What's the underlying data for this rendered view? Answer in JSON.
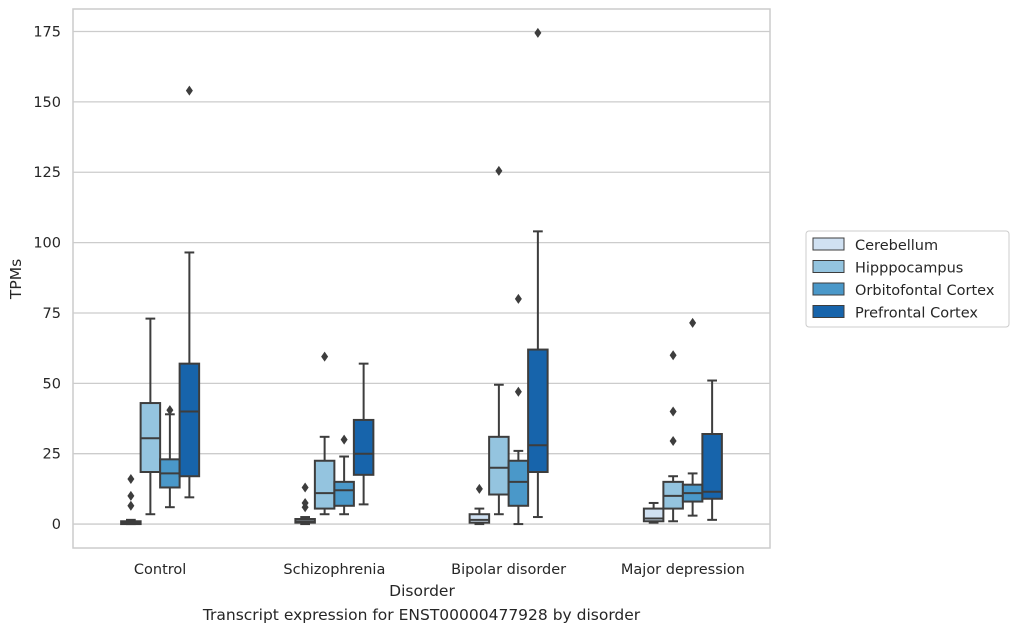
{
  "caption": "Transcript expression for ENST00000477928 by disorder",
  "chart_data": {
    "type": "box",
    "xlabel": "Disorder",
    "ylabel": "TPMs",
    "ylim": [
      -8.5,
      183
    ],
    "yticks": [
      0,
      25,
      50,
      75,
      100,
      125,
      150,
      175
    ],
    "categories": [
      "Control",
      "Schizophrenia",
      "Bipolar disorder",
      "Major depression"
    ],
    "grid": "horizontal",
    "legend_position": "right",
    "series": [
      {
        "name": "Cerebellum",
        "color": "#d0e1f2",
        "boxes": [
          {
            "min": 0,
            "q1": 0,
            "median": 0.5,
            "q3": 1,
            "max": 1.5,
            "outliers": [
              6.5,
              10,
              16
            ]
          },
          {
            "min": 0,
            "q1": 0.5,
            "median": 1,
            "q3": 1.8,
            "max": 2.5,
            "outliers": [
              6,
              7.5,
              13
            ]
          },
          {
            "min": 0,
            "q1": 0.5,
            "median": 1.5,
            "q3": 3.5,
            "max": 5.5,
            "outliers": [
              12.5
            ]
          },
          {
            "min": 0.5,
            "q1": 1,
            "median": 2,
            "q3": 5.5,
            "max": 7.5,
            "outliers": []
          }
        ]
      },
      {
        "name": "Hipppocampus",
        "color": "#94c4df",
        "boxes": [
          {
            "min": 3.5,
            "q1": 18.5,
            "median": 30.5,
            "q3": 43,
            "max": 73,
            "outliers": []
          },
          {
            "min": 3.5,
            "q1": 5.5,
            "median": 11,
            "q3": 22.5,
            "max": 31,
            "outliers": [
              59.5
            ]
          },
          {
            "min": 3.5,
            "q1": 10.5,
            "median": 20,
            "q3": 31,
            "max": 49.5,
            "outliers": [
              125.5
            ]
          },
          {
            "min": 1,
            "q1": 5.5,
            "median": 10,
            "q3": 15,
            "max": 17,
            "outliers": [
              29.5,
              40,
              60
            ]
          }
        ]
      },
      {
        "name": "Orbitofontal Cortex",
        "color": "#4a98c9",
        "boxes": [
          {
            "min": 6,
            "q1": 13,
            "median": 18,
            "q3": 23,
            "max": 39,
            "outliers": [
              40.5
            ]
          },
          {
            "min": 3.5,
            "q1": 6.5,
            "median": 12,
            "q3": 15,
            "max": 24,
            "outliers": [
              30
            ]
          },
          {
            "min": 0,
            "q1": 6.5,
            "median": 15,
            "q3": 22.5,
            "max": 26,
            "outliers": [
              47,
              80
            ]
          },
          {
            "min": 3,
            "q1": 8,
            "median": 11,
            "q3": 14,
            "max": 18,
            "outliers": [
              71.5
            ]
          }
        ]
      },
      {
        "name": "Prefrontal Cortex",
        "color": "#1764ab",
        "boxes": [
          {
            "min": 9.5,
            "q1": 17,
            "median": 40,
            "q3": 57,
            "max": 96.5,
            "outliers": [
              154
            ]
          },
          {
            "min": 7,
            "q1": 17.5,
            "median": 25,
            "q3": 37,
            "max": 57,
            "outliers": []
          },
          {
            "min": 2.5,
            "q1": 18.5,
            "median": 28,
            "q3": 62,
            "max": 104,
            "outliers": [
              174.5
            ]
          },
          {
            "min": 1.5,
            "q1": 9,
            "median": 11.5,
            "q3": 32,
            "max": 51,
            "outliers": []
          }
        ]
      }
    ]
  }
}
